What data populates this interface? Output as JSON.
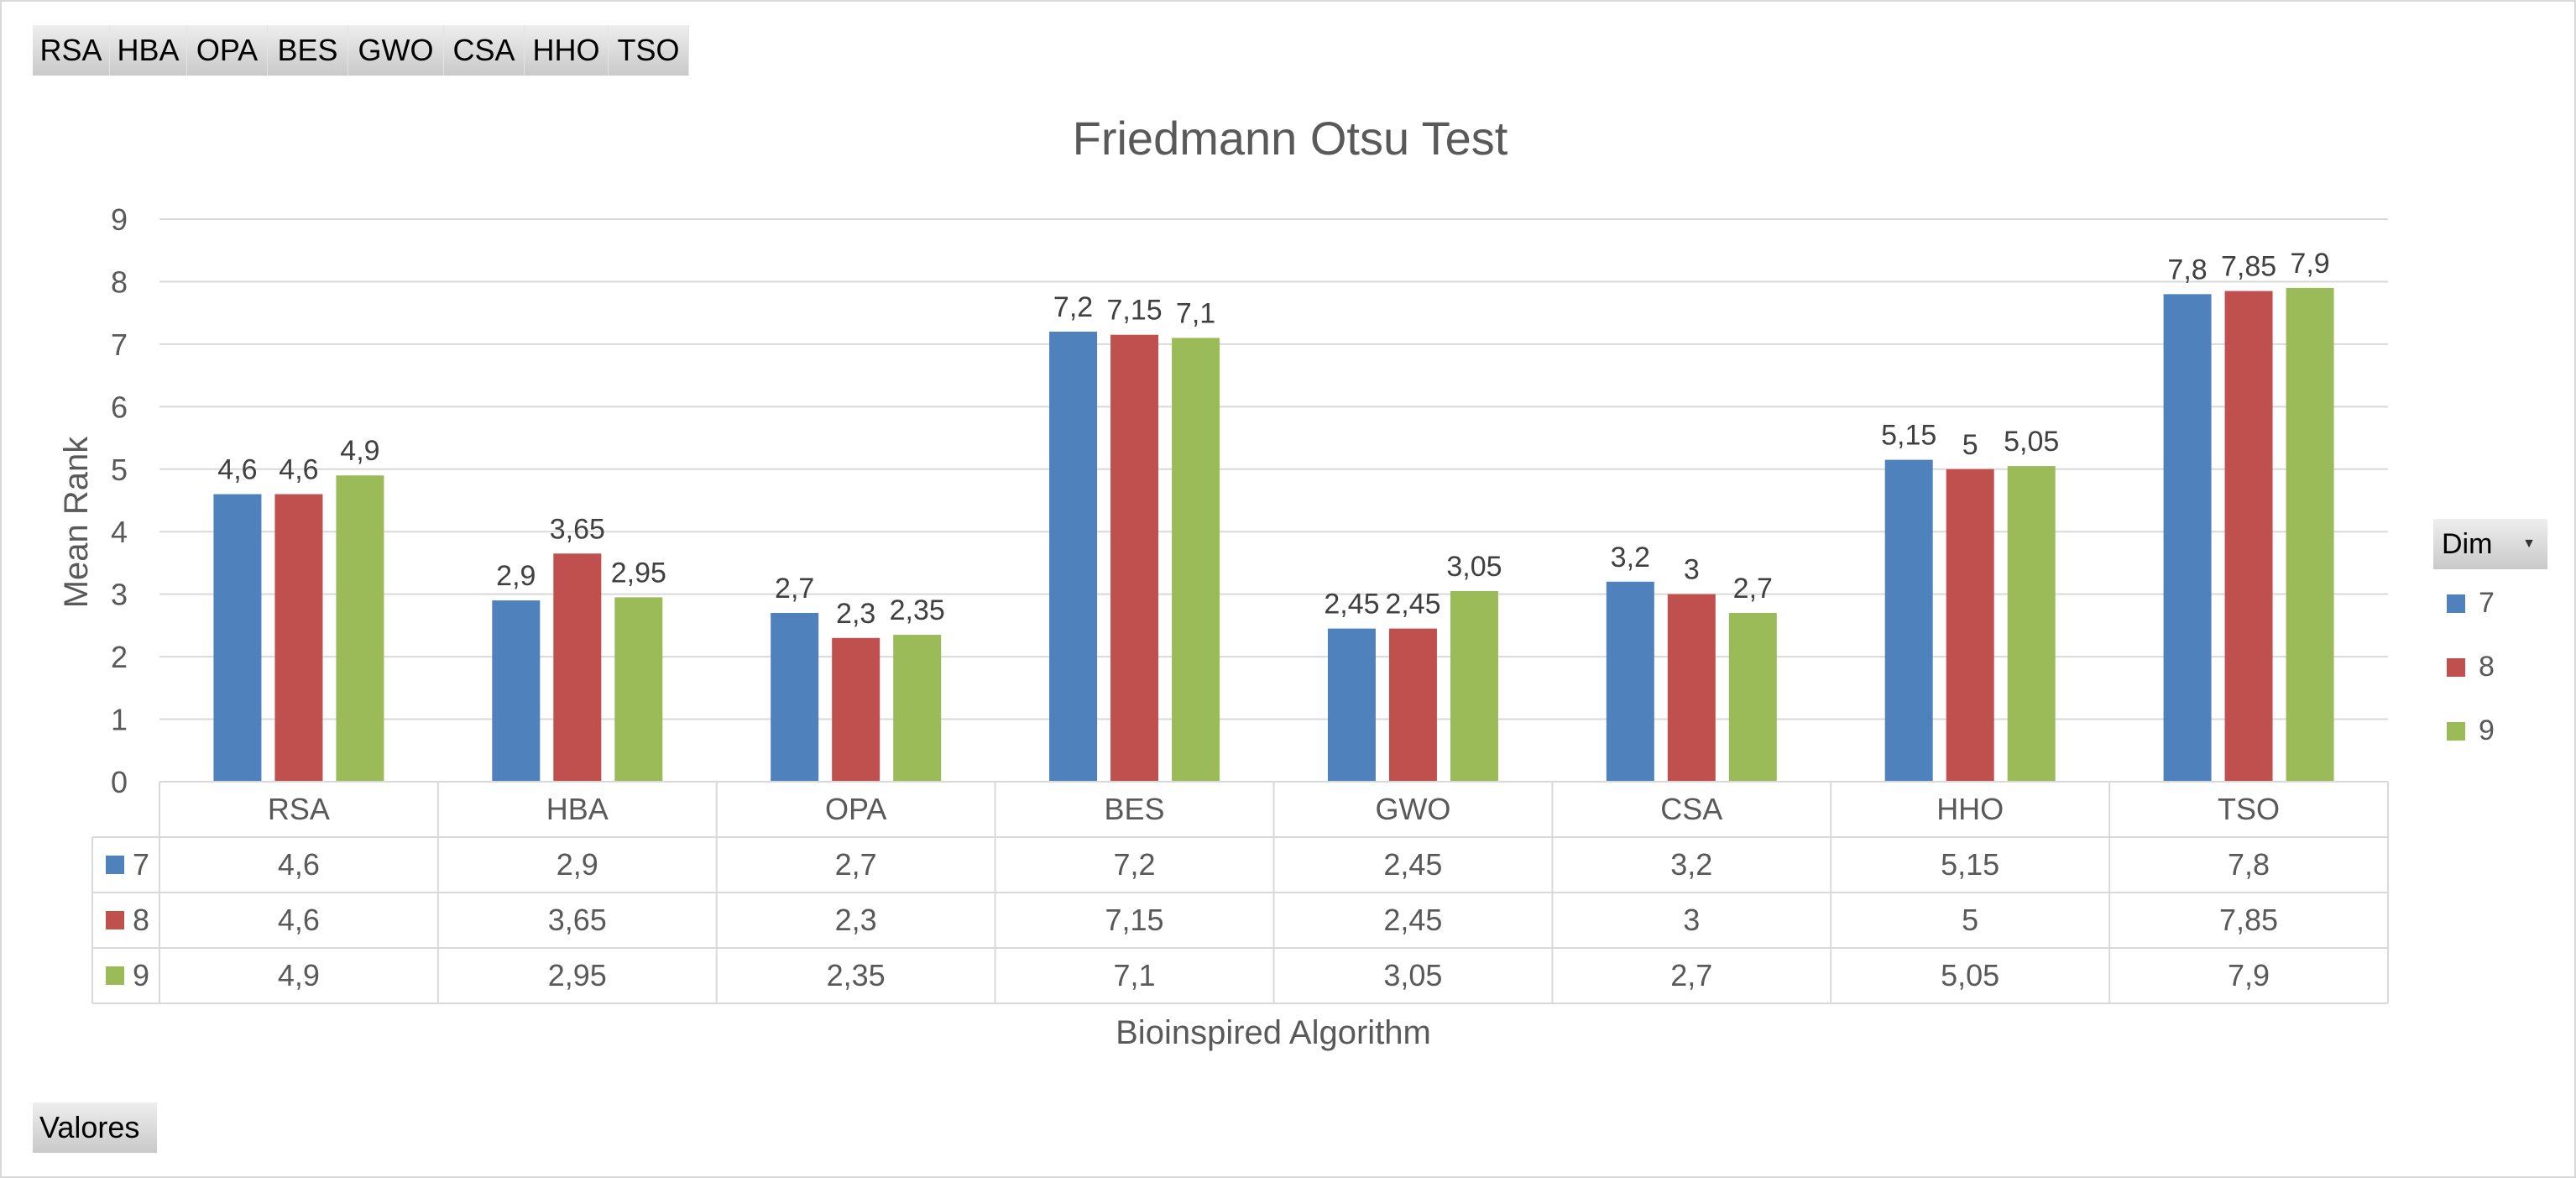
{
  "pivot": {
    "field_buttons": [
      "RSA",
      "HBA",
      "OPA",
      "BES",
      "GWO",
      "CSA",
      "HHO",
      "TSO"
    ],
    "legend_field": "Dim",
    "values_button": "Valores"
  },
  "colors": {
    "series_7": "#4f81bd",
    "series_8": "#c0504d",
    "series_9": "#9bbb59",
    "gridline": "#d9d9d9",
    "text": "#595959"
  },
  "chart_data": {
    "type": "bar",
    "title": "Friedmann Otsu Test",
    "xlabel": "Bioinspired Algorithm",
    "ylabel": "Mean Rank",
    "ylim": [
      0,
      9
    ],
    "yticks": [
      "0",
      "1",
      "2",
      "3",
      "4",
      "5",
      "6",
      "7",
      "8",
      "9"
    ],
    "grid": true,
    "legend_position": "right",
    "data_table": true,
    "categories": [
      "RSA",
      "HBA",
      "OPA",
      "BES",
      "GWO",
      "CSA",
      "HHO",
      "TSO"
    ],
    "series": [
      {
        "name": "7",
        "color": "#4f81bd",
        "values": [
          4.6,
          2.9,
          2.7,
          7.2,
          2.45,
          3.2,
          5.15,
          7.8
        ],
        "labels": [
          "4,6",
          "2,9",
          "2,7",
          "7,2",
          "2,45",
          "3,2",
          "5,15",
          "7,8"
        ]
      },
      {
        "name": "8",
        "color": "#c0504d",
        "values": [
          4.6,
          3.65,
          2.3,
          7.15,
          2.45,
          3,
          5,
          7.85
        ],
        "labels": [
          "4,6",
          "3,65",
          "2,3",
          "7,15",
          "2,45",
          "3",
          "5",
          "7,85"
        ]
      },
      {
        "name": "9",
        "color": "#9bbb59",
        "values": [
          4.9,
          2.95,
          2.35,
          7.1,
          3.05,
          2.7,
          5.05,
          7.9
        ],
        "labels": [
          "4,9",
          "2,95",
          "2,35",
          "7,1",
          "3,05",
          "2,7",
          "5,05",
          "7,9"
        ]
      }
    ]
  }
}
